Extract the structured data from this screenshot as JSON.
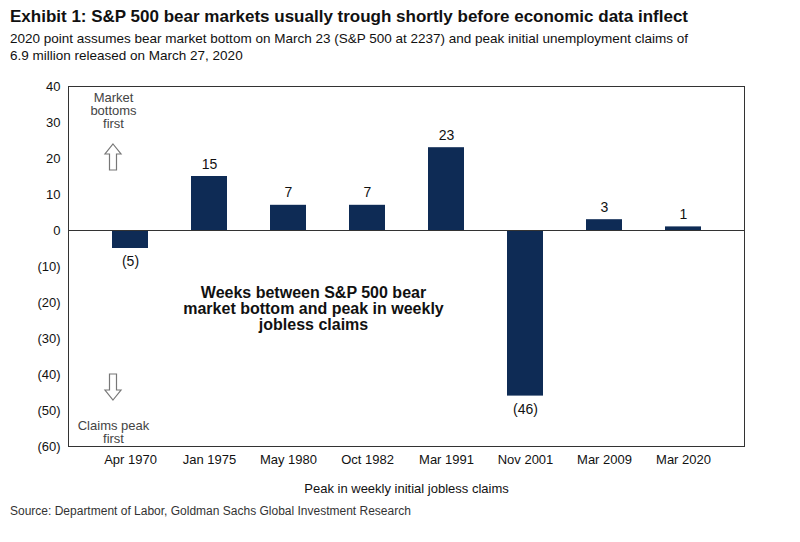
{
  "chart_data": {
    "type": "bar",
    "title": "Exhibit 1: S&P 500 bear markets usually trough shortly before economic data inflect",
    "subtitle": "2020 point assumes bear market bottom on March 23 (S&P 500 at 2237) and peak initial unemployment claims of 6.9 million released on March 27, 2020",
    "categories": [
      "Apr 1970",
      "Jan 1975",
      "May 1980",
      "Oct 1982",
      "Mar 1991",
      "Nov 2001",
      "Mar 2009",
      "Mar 2020"
    ],
    "values": [
      -5,
      15,
      7,
      7,
      23,
      -46,
      3,
      1
    ],
    "value_labels": [
      "(5)",
      "15",
      "7",
      "7",
      "23",
      "(46)",
      "3",
      "1"
    ],
    "color": "#0e2b55",
    "data_labels": true,
    "ylim": [
      -60,
      40
    ],
    "yticks": [
      {
        "value": -60,
        "label": "(60)"
      },
      {
        "value": -50,
        "label": "(50)"
      },
      {
        "value": -40,
        "label": "(40)"
      },
      {
        "value": -30,
        "label": "(30)"
      },
      {
        "value": -20,
        "label": "(20)"
      },
      {
        "value": -10,
        "label": "(10)"
      },
      0,
      10,
      20,
      30,
      40
    ],
    "xlabel": "Peak in weekly initial jobless claims",
    "annotations": [
      "Market bottoms first",
      "Claims peak first",
      "Weeks between S&P 500 bear market bottom and peak in weekly jobless claims"
    ],
    "source": "Source: Department of Labor, Goldman Sachs Global Investment Research"
  }
}
